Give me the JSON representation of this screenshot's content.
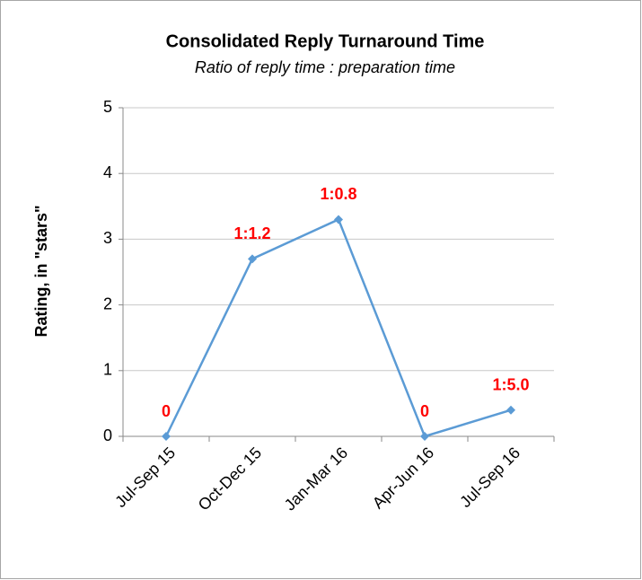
{
  "chart_data": {
    "type": "line",
    "title": "Consolidated Reply Turnaround Time",
    "subtitle": "Ratio of reply time : preparation time",
    "y_label": "Rating, in \"stars\"",
    "categories": [
      "Jul-Sep 15",
      "Oct-Dec 15",
      "Jan-Mar 16",
      "Apr-Jun 16",
      "Jul-Sep 16"
    ],
    "values": [
      0,
      2.7,
      3.3,
      0,
      0.4
    ],
    "annotations": [
      "0",
      "1:1.2",
      "1:0.8",
      "0",
      "1:5.0"
    ],
    "color": "#5b9bd5",
    "annotation_color": "#ff0000",
    "ylim": [
      0,
      5
    ],
    "yticks": [
      0,
      1,
      2,
      3,
      4,
      5
    ],
    "grid": true
  }
}
